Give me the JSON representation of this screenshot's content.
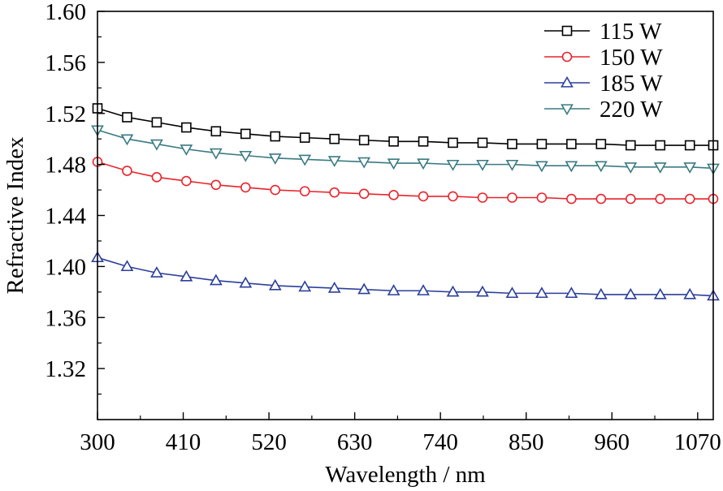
{
  "chart_data": {
    "type": "line",
    "title": "",
    "xlabel": "Wavelength  / nm",
    "ylabel": "Refractive Index",
    "xlim": [
      300,
      1090
    ],
    "ylim": [
      1.28,
      1.6
    ],
    "xticks": [
      300,
      410,
      520,
      630,
      740,
      850,
      960,
      1070
    ],
    "yticks": [
      1.32,
      1.36,
      1.4,
      1.44,
      1.48,
      1.52,
      1.56,
      1.6
    ],
    "grid": false,
    "legend_position": "top-right",
    "x": [
      300,
      338,
      376,
      414,
      452,
      490,
      528,
      566,
      604,
      642,
      680,
      718,
      756,
      794,
      832,
      870,
      908,
      946,
      984,
      1022,
      1060,
      1090
    ],
    "series": [
      {
        "name": "115 W",
        "marker": "square",
        "color": "#000000",
        "values": [
          1.524,
          1.517,
          1.513,
          1.509,
          1.506,
          1.504,
          1.502,
          1.501,
          1.5,
          1.499,
          1.498,
          1.498,
          1.497,
          1.497,
          1.496,
          1.496,
          1.496,
          1.496,
          1.495,
          1.495,
          1.495,
          1.495
        ]
      },
      {
        "name": "150 W",
        "marker": "circle",
        "color": "#e8242b",
        "values": [
          1.482,
          1.475,
          1.47,
          1.467,
          1.464,
          1.462,
          1.46,
          1.459,
          1.458,
          1.457,
          1.456,
          1.455,
          1.455,
          1.454,
          1.454,
          1.454,
          1.453,
          1.453,
          1.453,
          1.453,
          1.453,
          1.453
        ]
      },
      {
        "name": "185 W",
        "marker": "triangle-up",
        "color": "#2b3f9b",
        "values": [
          1.407,
          1.4,
          1.395,
          1.392,
          1.389,
          1.387,
          1.385,
          1.384,
          1.383,
          1.382,
          1.381,
          1.381,
          1.38,
          1.38,
          1.379,
          1.379,
          1.379,
          1.378,
          1.378,
          1.378,
          1.378,
          1.377
        ]
      },
      {
        "name": "220 W",
        "marker": "triangle-down",
        "color": "#3a7a82",
        "values": [
          1.507,
          1.5,
          1.496,
          1.492,
          1.489,
          1.487,
          1.485,
          1.484,
          1.483,
          1.482,
          1.481,
          1.481,
          1.48,
          1.48,
          1.48,
          1.479,
          1.479,
          1.479,
          1.478,
          1.478,
          1.478,
          1.477
        ]
      }
    ]
  }
}
